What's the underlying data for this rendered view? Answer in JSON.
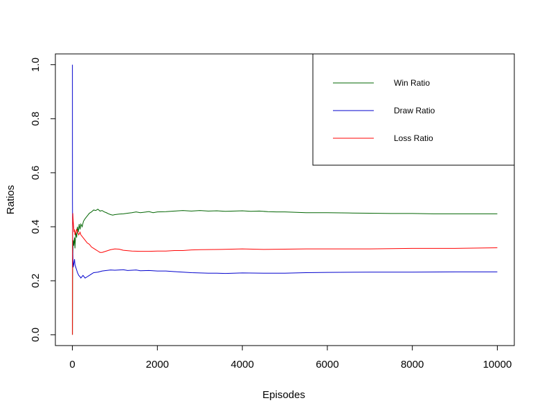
{
  "chart_data": {
    "type": "line",
    "xlabel": "Episodes",
    "ylabel": "Ratios",
    "xlim": [
      -400,
      10400
    ],
    "ylim": [
      -0.04,
      1.04
    ],
    "x_ticks": [
      0,
      2000,
      4000,
      6000,
      8000,
      10000
    ],
    "x_tick_labels": [
      "0",
      "2000",
      "4000",
      "6000",
      "8000",
      "10000"
    ],
    "y_ticks": [
      0.0,
      0.2,
      0.4,
      0.6,
      0.8,
      1.0
    ],
    "y_tick_labels": [
      "0.0",
      "0.2",
      "0.4",
      "0.6",
      "0.8",
      "1.0"
    ],
    "grid": false,
    "legend_position": "top-right",
    "series": [
      {
        "name": "Win Ratio",
        "color": "#006400",
        "x": [
          1,
          5,
          10,
          20,
          30,
          50,
          60,
          80,
          100,
          120,
          140,
          160,
          180,
          200,
          230,
          260,
          300,
          350,
          400,
          450,
          500,
          550,
          600,
          650,
          700,
          750,
          800,
          850,
          900,
          950,
          1000,
          1100,
          1200,
          1300,
          1400,
          1500,
          1600,
          1700,
          1800,
          1900,
          2000,
          2200,
          2400,
          2600,
          2800,
          3000,
          3200,
          3400,
          3600,
          3800,
          4000,
          4200,
          4400,
          4600,
          4800,
          5000,
          5500,
          6000,
          6500,
          7000,
          7500,
          8000,
          8500,
          9000,
          9500,
          10000
        ],
        "y": [
          0.0,
          0.2,
          0.3,
          0.35,
          0.33,
          0.36,
          0.32,
          0.38,
          0.36,
          0.4,
          0.38,
          0.41,
          0.39,
          0.41,
          0.4,
          0.42,
          0.43,
          0.44,
          0.45,
          0.455,
          0.462,
          0.46,
          0.465,
          0.458,
          0.46,
          0.455,
          0.452,
          0.448,
          0.445,
          0.443,
          0.445,
          0.447,
          0.448,
          0.45,
          0.452,
          0.455,
          0.452,
          0.454,
          0.456,
          0.452,
          0.455,
          0.456,
          0.458,
          0.46,
          0.458,
          0.46,
          0.458,
          0.459,
          0.457,
          0.458,
          0.459,
          0.457,
          0.458,
          0.456,
          0.455,
          0.455,
          0.452,
          0.452,
          0.451,
          0.45,
          0.449,
          0.449,
          0.448,
          0.448,
          0.448,
          0.448
        ]
      },
      {
        "name": "Draw Ratio",
        "color": "#0000cd",
        "x": [
          1,
          2,
          5,
          10,
          15,
          20,
          30,
          40,
          50,
          60,
          80,
          100,
          120,
          150,
          180,
          200,
          250,
          300,
          350,
          400,
          450,
          500,
          600,
          700,
          800,
          900,
          1000,
          1100,
          1200,
          1300,
          1400,
          1500,
          1600,
          1800,
          2000,
          2200,
          2400,
          2600,
          2800,
          3000,
          3200,
          3400,
          3600,
          3800,
          4000,
          4500,
          5000,
          5500,
          6000,
          7000,
          8000,
          9000,
          10000
        ],
        "y": [
          1.0,
          0.5,
          0.4,
          0.3,
          0.27,
          0.25,
          0.26,
          0.27,
          0.28,
          0.26,
          0.25,
          0.24,
          0.23,
          0.22,
          0.215,
          0.21,
          0.22,
          0.21,
          0.215,
          0.22,
          0.225,
          0.23,
          0.232,
          0.236,
          0.238,
          0.24,
          0.239,
          0.24,
          0.241,
          0.238,
          0.239,
          0.24,
          0.237,
          0.238,
          0.236,
          0.236,
          0.234,
          0.232,
          0.23,
          0.229,
          0.228,
          0.228,
          0.227,
          0.228,
          0.229,
          0.228,
          0.228,
          0.23,
          0.231,
          0.232,
          0.232,
          0.233,
          0.233
        ]
      },
      {
        "name": "Loss Ratio",
        "color": "#ff0000",
        "x": [
          1,
          3,
          5,
          10,
          20,
          30,
          40,
          50,
          60,
          80,
          100,
          120,
          150,
          180,
          200,
          250,
          300,
          350,
          400,
          450,
          500,
          550,
          600,
          650,
          700,
          800,
          900,
          1000,
          1100,
          1200,
          1400,
          1600,
          1800,
          2000,
          2200,
          2400,
          2600,
          2800,
          3000,
          3500,
          4000,
          4500,
          5000,
          5500,
          6000,
          7000,
          8000,
          9000,
          10000
        ],
        "y": [
          0.0,
          0.3,
          0.4,
          0.45,
          0.42,
          0.4,
          0.38,
          0.39,
          0.37,
          0.38,
          0.39,
          0.38,
          0.37,
          0.38,
          0.37,
          0.36,
          0.35,
          0.34,
          0.335,
          0.325,
          0.32,
          0.315,
          0.31,
          0.305,
          0.305,
          0.31,
          0.315,
          0.318,
          0.317,
          0.313,
          0.31,
          0.309,
          0.309,
          0.31,
          0.31,
          0.312,
          0.312,
          0.314,
          0.315,
          0.316,
          0.318,
          0.316,
          0.317,
          0.318,
          0.318,
          0.318,
          0.32,
          0.32,
          0.322
        ]
      }
    ]
  }
}
